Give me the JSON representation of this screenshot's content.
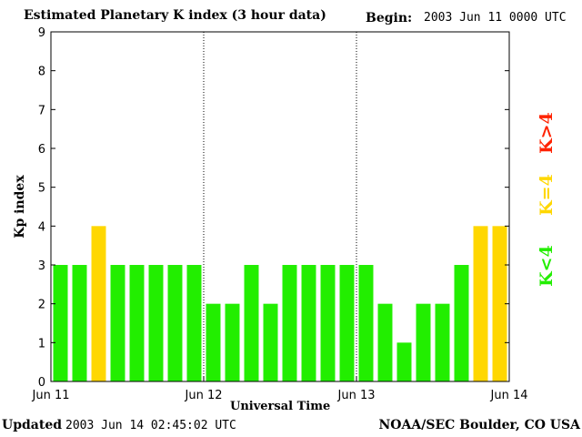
{
  "header": {
    "title": "Estimated Planetary K index (3 hour data)",
    "begin_label": "Begin:",
    "begin_value": "2003 Jun 11 0000 UTC"
  },
  "footer": {
    "updated_label": "Updated",
    "updated_value": "2003 Jun 14 02:45:02 UTC",
    "source": "NOAA/SEC Boulder, CO USA"
  },
  "legend": [
    {
      "label": "K<4",
      "color": "#22ee00"
    },
    {
      "label": "K=4",
      "color": "#ffd700"
    },
    {
      "label": "K>4",
      "color": "#ff2200"
    }
  ],
  "chart_data": {
    "type": "bar",
    "title": "Estimated Planetary K index (3 hour data)",
    "xlabel": "Universal Time",
    "ylabel": "Kp index",
    "ylim": [
      0,
      9
    ],
    "yticks": [
      0,
      1,
      2,
      3,
      4,
      5,
      6,
      7,
      8,
      9
    ],
    "xticks": [
      "Jun 11",
      "Jun 12",
      "Jun 13",
      "Jun 14"
    ],
    "day_separators": true,
    "values": [
      3,
      3,
      4,
      3,
      3,
      3,
      3,
      3,
      2,
      2,
      3,
      2,
      3,
      3,
      3,
      3,
      3,
      2,
      1,
      2,
      2,
      3,
      4,
      4
    ],
    "colors": {
      "low": "#22ee00",
      "equal": "#ffd700",
      "high": "#ff2200"
    }
  }
}
